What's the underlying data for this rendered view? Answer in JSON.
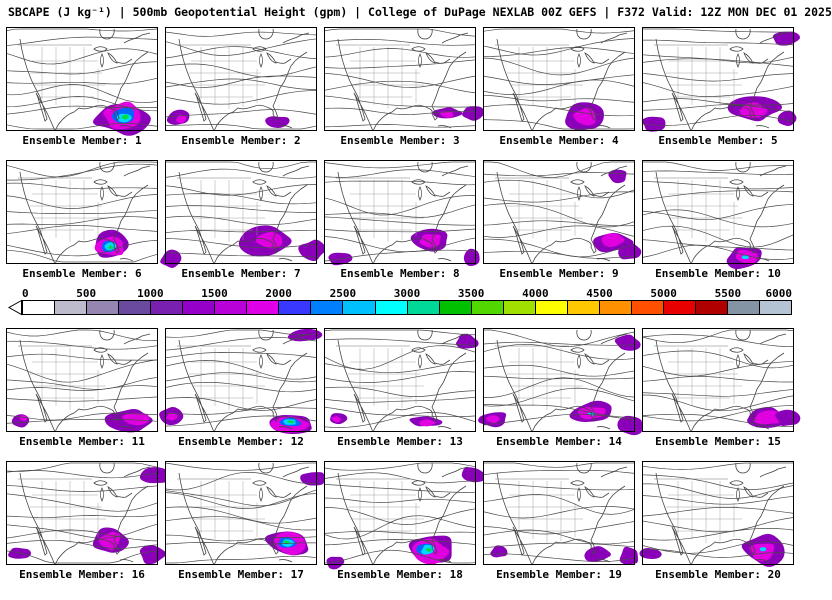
{
  "header": {
    "title": "SBCAPE (J kg⁻¹) | 500mb Geopotential Height (gpm) | College of DuPage NEXLAB 00Z GEFS | F372 Valid: 12Z MON DEC 01 2025"
  },
  "chart_data": {
    "type": "heatmap",
    "subtype": "ensemble-forecast-map-grid",
    "layout": "4 rows x 5 columns small multiples",
    "shaded_variable": "SBCAPE (J kg⁻¹)",
    "contour_variable": "500mb Geopotential Height (gpm)",
    "provider": "College of DuPage NEXLAB",
    "model_run": "00Z GEFS",
    "forecast_hour": "F372",
    "valid_time": "12Z MON DEC 01 2025",
    "colorbar": {
      "units": "J kg⁻¹",
      "min": 0,
      "max": 6000,
      "tick_step": 500,
      "ticks": [
        "0",
        "500",
        "1000",
        "1500",
        "2000",
        "2500",
        "3000",
        "3500",
        "4000",
        "4500",
        "5000",
        "5500",
        "6000"
      ],
      "segment_colors": [
        "#ffffff",
        "#bcbccc",
        "#9486b0",
        "#6a4a9e",
        "#7a20b0",
        "#9400c8",
        "#b800d8",
        "#e000e8",
        "#3838ff",
        "#0080ff",
        "#00c0ff",
        "#00ffff",
        "#00d898",
        "#00c000",
        "#50d800",
        "#a0e000",
        "#ffff00",
        "#ffc800",
        "#ff9000",
        "#ff5000",
        "#e80000",
        "#b00000",
        "#8494a4",
        "#b4c4d4"
      ]
    },
    "members": [
      {
        "member": 1,
        "label": "Ensemble Member: 1",
        "cape_intensity": "high"
      },
      {
        "member": 2,
        "label": "Ensemble Member: 2",
        "cape_intensity": "low"
      },
      {
        "member": 3,
        "label": "Ensemble Member: 3",
        "cape_intensity": "low"
      },
      {
        "member": 4,
        "label": "Ensemble Member: 4",
        "cape_intensity": "medium"
      },
      {
        "member": 5,
        "label": "Ensemble Member: 5",
        "cape_intensity": "medium"
      },
      {
        "member": 6,
        "label": "Ensemble Member: 6",
        "cape_intensity": "high"
      },
      {
        "member": 7,
        "label": "Ensemble Member: 7",
        "cape_intensity": "medium"
      },
      {
        "member": 8,
        "label": "Ensemble Member: 8",
        "cape_intensity": "medium"
      },
      {
        "member": 9,
        "label": "Ensemble Member: 9",
        "cape_intensity": "medium"
      },
      {
        "member": 10,
        "label": "Ensemble Member: 10",
        "cape_intensity": "medium"
      },
      {
        "member": 11,
        "label": "Ensemble Member: 11",
        "cape_intensity": "medium"
      },
      {
        "member": 12,
        "label": "Ensemble Member: 12",
        "cape_intensity": "high"
      },
      {
        "member": 13,
        "label": "Ensemble Member: 13",
        "cape_intensity": "low"
      },
      {
        "member": 14,
        "label": "Ensemble Member: 14",
        "cape_intensity": "medium"
      },
      {
        "member": 15,
        "label": "Ensemble Member: 15",
        "cape_intensity": "medium"
      },
      {
        "member": 16,
        "label": "Ensemble Member: 16",
        "cape_intensity": "medium"
      },
      {
        "member": 17,
        "label": "Ensemble Member: 17",
        "cape_intensity": "high"
      },
      {
        "member": 18,
        "label": "Ensemble Member: 18",
        "cape_intensity": "high"
      },
      {
        "member": 19,
        "label": "Ensemble Member: 19",
        "cape_intensity": "low"
      },
      {
        "member": 20,
        "label": "Ensemble Member: 20",
        "cape_intensity": "medium"
      }
    ]
  }
}
